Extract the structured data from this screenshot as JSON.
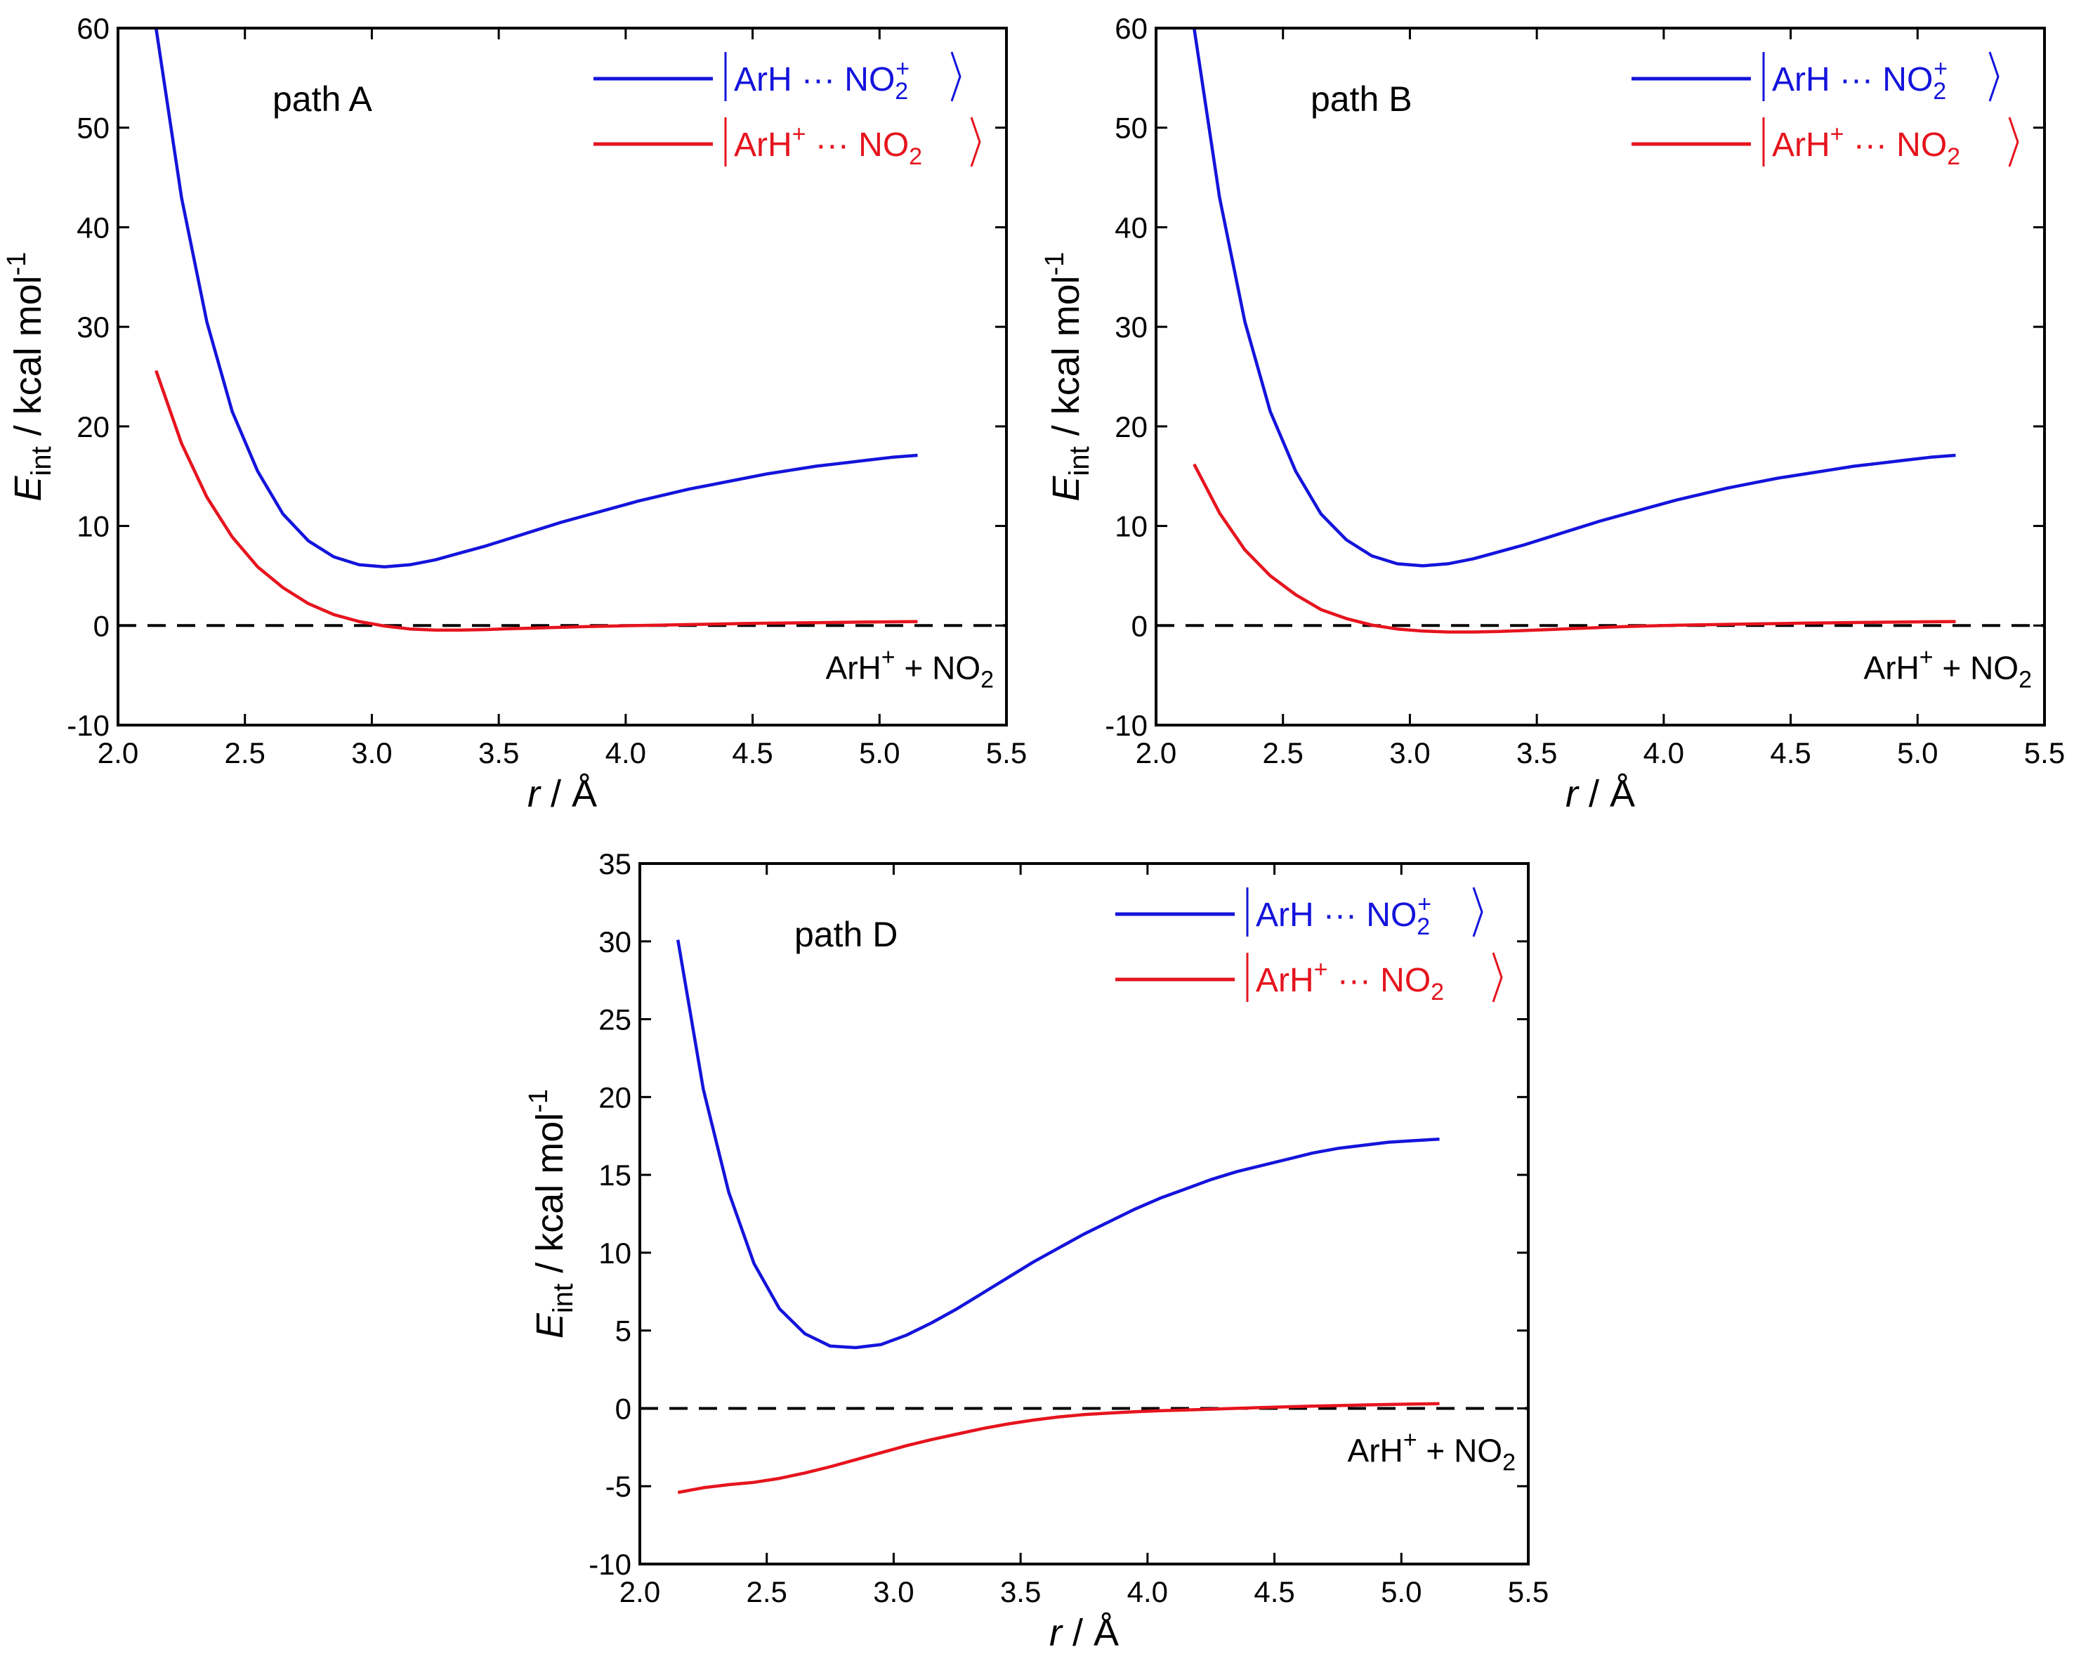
{
  "figure": {
    "xlabel_var": "r",
    "xlabel_unit": " / Å",
    "ylabel_var": "E",
    "ylabel_sub": "int",
    "ylabel_unit": " / kcal mol",
    "ylabel_sup": "-1",
    "legend": {
      "blue": {
        "pre": "ArH ··· NO",
        "sub": "2",
        "sup": "+"
      },
      "red": {
        "pre": "ArH",
        "sup": "+",
        "mid": " ··· NO",
        "sub": "2"
      }
    },
    "asymptote": {
      "pre": "ArH",
      "sup": "+",
      "mid": " + NO",
      "sub": "2"
    },
    "colors": {
      "blue": "#1414dc",
      "red": "#e6141e",
      "axis": "#000000"
    }
  },
  "chart_data": [
    {
      "type": "line",
      "panel": "path A",
      "xlim": [
        2.0,
        5.5
      ],
      "ylim": [
        -10,
        60
      ],
      "xticks": [
        "2.0",
        "2.5",
        "3.0",
        "3.5",
        "4.0",
        "4.5",
        "5.0",
        "5.5"
      ],
      "yticks": [
        "-10",
        "0",
        "10",
        "20",
        "30",
        "40",
        "50",
        "60"
      ],
      "xtick_values": [
        2.0,
        2.5,
        3.0,
        3.5,
        4.0,
        4.5,
        5.0,
        5.5
      ],
      "ytick_values": [
        -10,
        0,
        10,
        20,
        30,
        40,
        50,
        60
      ],
      "reference_line": 0,
      "series": [
        {
          "name": "|ArH···NO2+⟩",
          "color": "#1414dc",
          "x": [
            2.15,
            2.25,
            2.35,
            2.45,
            2.55,
            2.65,
            2.75,
            2.85,
            2.95,
            3.05,
            3.15,
            3.25,
            3.35,
            3.45,
            3.55,
            3.65,
            3.75,
            3.85,
            3.95,
            4.05,
            4.15,
            4.25,
            4.35,
            4.45,
            4.55,
            4.65,
            4.75,
            4.85,
            4.95,
            5.05,
            5.15
          ],
          "y": [
            60,
            43,
            30.5,
            21.5,
            15.5,
            11.2,
            8.5,
            6.9,
            6.1,
            5.9,
            6.1,
            6.6,
            7.3,
            8.0,
            8.8,
            9.6,
            10.4,
            11.1,
            11.8,
            12.5,
            13.1,
            13.7,
            14.2,
            14.7,
            15.2,
            15.6,
            16.0,
            16.3,
            16.6,
            16.9,
            17.1
          ]
        },
        {
          "name": "|ArH+···NO2⟩",
          "color": "#e6141e",
          "x": [
            2.15,
            2.25,
            2.35,
            2.45,
            2.55,
            2.65,
            2.75,
            2.85,
            2.95,
            3.05,
            3.15,
            3.25,
            3.35,
            3.45,
            3.55,
            3.65,
            3.75,
            3.85,
            3.95,
            4.05,
            4.15,
            4.25,
            4.35,
            4.45,
            4.55,
            4.65,
            4.75,
            4.85,
            4.95,
            5.05,
            5.15
          ],
          "y": [
            25.6,
            18.3,
            12.9,
            8.9,
            5.9,
            3.8,
            2.2,
            1.1,
            0.4,
            -0.05,
            -0.35,
            -0.45,
            -0.45,
            -0.4,
            -0.32,
            -0.25,
            -0.18,
            -0.1,
            -0.05,
            0.0,
            0.05,
            0.1,
            0.15,
            0.2,
            0.23,
            0.26,
            0.29,
            0.32,
            0.35,
            0.37,
            0.4
          ]
        }
      ]
    },
    {
      "type": "line",
      "panel": "path B",
      "xlim": [
        2.0,
        5.5
      ],
      "ylim": [
        -10,
        60
      ],
      "xticks": [
        "2.0",
        "2.5",
        "3.0",
        "3.5",
        "4.0",
        "4.5",
        "5.0",
        "5.5"
      ],
      "yticks": [
        "-10",
        "0",
        "10",
        "20",
        "30",
        "40",
        "50",
        "60"
      ],
      "xtick_values": [
        2.0,
        2.5,
        3.0,
        3.5,
        4.0,
        4.5,
        5.0,
        5.5
      ],
      "ytick_values": [
        -10,
        0,
        10,
        20,
        30,
        40,
        50,
        60
      ],
      "reference_line": 0,
      "series": [
        {
          "name": "|ArH···NO2+⟩",
          "color": "#1414dc",
          "x": [
            2.15,
            2.25,
            2.35,
            2.45,
            2.55,
            2.65,
            2.75,
            2.85,
            2.95,
            3.05,
            3.15,
            3.25,
            3.35,
            3.45,
            3.55,
            3.65,
            3.75,
            3.85,
            3.95,
            4.05,
            4.15,
            4.25,
            4.35,
            4.45,
            4.55,
            4.65,
            4.75,
            4.85,
            4.95,
            5.05,
            5.15
          ],
          "y": [
            60,
            43,
            30.5,
            21.5,
            15.5,
            11.2,
            8.6,
            7.0,
            6.2,
            6.0,
            6.2,
            6.7,
            7.4,
            8.1,
            8.9,
            9.7,
            10.5,
            11.2,
            11.9,
            12.6,
            13.2,
            13.8,
            14.3,
            14.8,
            15.2,
            15.6,
            16.0,
            16.3,
            16.6,
            16.9,
            17.1
          ]
        },
        {
          "name": "|ArH+···NO2⟩",
          "color": "#e6141e",
          "x": [
            2.15,
            2.25,
            2.35,
            2.45,
            2.55,
            2.65,
            2.75,
            2.85,
            2.95,
            3.05,
            3.15,
            3.25,
            3.35,
            3.45,
            3.55,
            3.65,
            3.75,
            3.85,
            3.95,
            4.05,
            4.15,
            4.25,
            4.35,
            4.45,
            4.55,
            4.65,
            4.75,
            4.85,
            4.95,
            5.05,
            5.15
          ],
          "y": [
            16.2,
            11.3,
            7.6,
            5.0,
            3.1,
            1.6,
            0.7,
            0.05,
            -0.35,
            -0.55,
            -0.65,
            -0.65,
            -0.6,
            -0.5,
            -0.4,
            -0.3,
            -0.2,
            -0.1,
            -0.03,
            0.03,
            0.08,
            0.12,
            0.16,
            0.2,
            0.24,
            0.27,
            0.3,
            0.33,
            0.36,
            0.38,
            0.4
          ]
        }
      ]
    },
    {
      "type": "line",
      "panel": "path D",
      "xlim": [
        2.0,
        5.5
      ],
      "ylim": [
        -10,
        35
      ],
      "xticks": [
        "2.0",
        "2.5",
        "3.0",
        "3.5",
        "4.0",
        "4.5",
        "5.0",
        "5.5"
      ],
      "yticks": [
        "-10",
        "-5",
        "0",
        "5",
        "10",
        "15",
        "20",
        "25",
        "30",
        "35"
      ],
      "xtick_values": [
        2.0,
        2.5,
        3.0,
        3.5,
        4.0,
        4.5,
        5.0,
        5.5
      ],
      "ytick_values": [
        -10,
        -5,
        0,
        5,
        10,
        15,
        20,
        25,
        30,
        35
      ],
      "reference_line": 0,
      "series": [
        {
          "name": "|ArH···NO2+⟩",
          "color": "#1414dc",
          "x": [
            2.15,
            2.25,
            2.35,
            2.45,
            2.55,
            2.65,
            2.75,
            2.85,
            2.95,
            3.05,
            3.15,
            3.25,
            3.35,
            3.45,
            3.55,
            3.65,
            3.75,
            3.85,
            3.95,
            4.05,
            4.15,
            4.25,
            4.35,
            4.45,
            4.55,
            4.65,
            4.75,
            4.85,
            4.95,
            5.05,
            5.15
          ],
          "y": [
            30.1,
            20.5,
            13.9,
            9.3,
            6.4,
            4.8,
            4.0,
            3.9,
            4.1,
            4.7,
            5.5,
            6.4,
            7.4,
            8.4,
            9.4,
            10.3,
            11.2,
            12.0,
            12.8,
            13.5,
            14.1,
            14.7,
            15.2,
            15.6,
            16.0,
            16.4,
            16.7,
            16.9,
            17.1,
            17.2,
            17.3
          ]
        },
        {
          "name": "|ArH+···NO2⟩",
          "color": "#e6141e",
          "x": [
            2.15,
            2.25,
            2.35,
            2.45,
            2.55,
            2.65,
            2.75,
            2.85,
            2.95,
            3.05,
            3.15,
            3.25,
            3.35,
            3.45,
            3.55,
            3.65,
            3.75,
            3.85,
            3.95,
            4.05,
            4.15,
            4.25,
            4.35,
            4.45,
            4.55,
            4.65,
            4.75,
            4.85,
            4.95,
            5.05,
            5.15
          ],
          "y": [
            -5.4,
            -5.1,
            -4.9,
            -4.75,
            -4.5,
            -4.15,
            -3.75,
            -3.3,
            -2.85,
            -2.4,
            -2.0,
            -1.65,
            -1.3,
            -1.0,
            -0.75,
            -0.55,
            -0.4,
            -0.3,
            -0.22,
            -0.15,
            -0.1,
            -0.05,
            0.0,
            0.05,
            0.1,
            0.14,
            0.18,
            0.22,
            0.25,
            0.28,
            0.3
          ]
        }
      ]
    }
  ]
}
